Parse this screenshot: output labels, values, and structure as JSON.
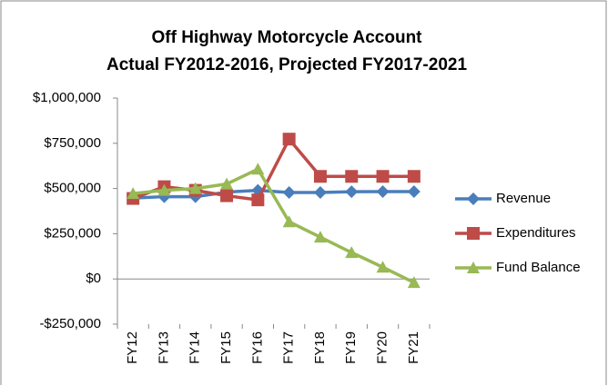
{
  "chart_data": {
    "type": "line",
    "title": "Off Highway Motorcycle Account",
    "subtitle": "Actual FY2012-2016, Projected FY2017-2021",
    "categories": [
      "FY12",
      "FY13",
      "FY14",
      "FY15",
      "FY16",
      "FY17",
      "FY18",
      "FY19",
      "FY20",
      "FY21"
    ],
    "series": [
      {
        "name": "Revenue",
        "color": "#4a7ebb",
        "marker": "diamond",
        "values": [
          447000,
          455000,
          455000,
          480000,
          490000,
          478000,
          478000,
          482000,
          483000,
          483000
        ]
      },
      {
        "name": "Expenditures",
        "color": "#be4b48",
        "marker": "square",
        "values": [
          445000,
          510000,
          490000,
          460000,
          437000,
          773000,
          567000,
          567000,
          567000,
          567000
        ]
      },
      {
        "name": "Fund Balance",
        "color": "#98b954",
        "marker": "triangle",
        "values": [
          472000,
          490000,
          500000,
          525000,
          607000,
          316000,
          231000,
          146000,
          65000,
          -20000
        ]
      }
    ],
    "ylim": [
      -250000,
      1000000
    ],
    "yticks": [
      {
        "value": -250000,
        "label": "-$250,000"
      },
      {
        "value": 0,
        "label": "$0"
      },
      {
        "value": 250000,
        "label": "$250,000"
      },
      {
        "value": 500000,
        "label": "$500,000"
      },
      {
        "value": 750000,
        "label": "$750,000"
      },
      {
        "value": 1000000,
        "label": "$1,000,000"
      }
    ],
    "legend": "right"
  }
}
